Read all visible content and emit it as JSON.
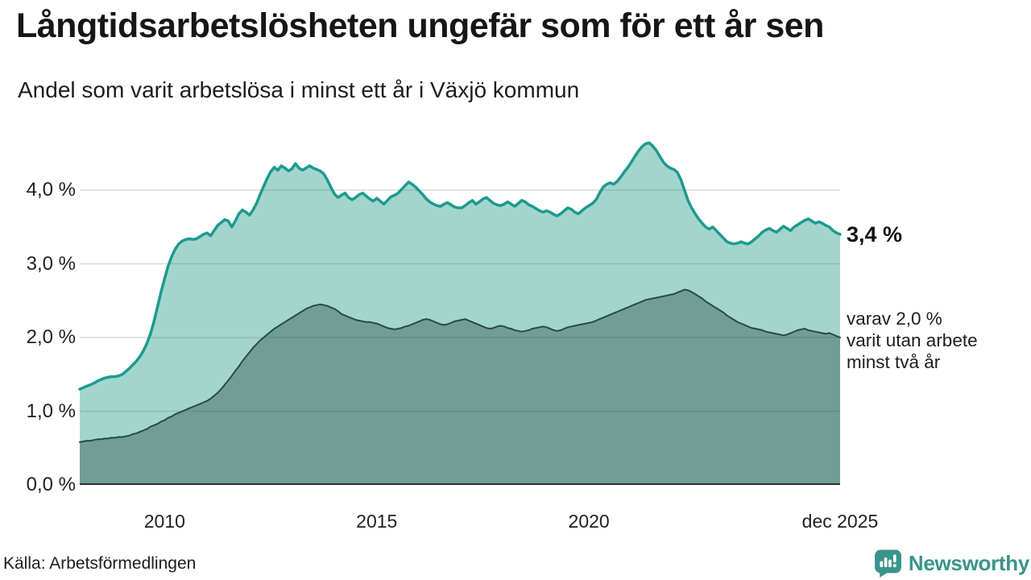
{
  "annotations": {
    "latest_value": "3,4 %",
    "secondary_lines": [
      "varav 2,0 %",
      "varit utan arbete",
      "minst två år"
    ]
  },
  "footer": {
    "source": "Källa: Arbetsförmedlingen",
    "brand": "Newsworthy"
  },
  "icons": {
    "logo": "newsworthy-pin-barchart-icon"
  },
  "colors": {
    "series1_line": "#1d9a8d",
    "series1_fill": "#a2d6cd",
    "series2_line": "#2b4a42",
    "series2_fill": "#719d96",
    "gridline": "#d8dedc",
    "baseline": "#2f2f2f",
    "text": "#1d1d1d",
    "brand_teal": "#39948a"
  },
  "chart_data": {
    "type": "area",
    "title": "Långtidsarbetslösheten ungefär som för ett år sen",
    "subtitle": "Andel som varit arbetslösa i minst ett år i Växjö kommun",
    "xlabel": "",
    "ylabel": "",
    "unit": "%",
    "grid": true,
    "legend_position": "right-edge-annotations",
    "frequency": "monthly",
    "x_range": [
      2008.0,
      2025.92
    ],
    "ylim": [
      0,
      4.7
    ],
    "y_ticks": [
      {
        "label": "0,0 %",
        "value": 0
      },
      {
        "label": "1,0 %",
        "value": 1
      },
      {
        "label": "2,0 %",
        "value": 2
      },
      {
        "label": "3,0 %",
        "value": 3
      },
      {
        "label": "4,0 %",
        "value": 4
      }
    ],
    "x_ticks": [
      {
        "label": "2010",
        "year": 2010
      },
      {
        "label": "2015",
        "year": 2015
      },
      {
        "label": "2020",
        "year": 2020
      },
      {
        "label": "dec 2025",
        "year": 2025.92
      }
    ],
    "series": [
      {
        "name": "Arbetslösa minst ett år",
        "latest_value": 3.4,
        "values": [
          1.3,
          1.32,
          1.34,
          1.36,
          1.38,
          1.41,
          1.43,
          1.45,
          1.46,
          1.47,
          1.47,
          1.48,
          1.5,
          1.54,
          1.58,
          1.63,
          1.68,
          1.74,
          1.82,
          1.92,
          2.05,
          2.22,
          2.42,
          2.62,
          2.8,
          2.97,
          3.1,
          3.2,
          3.27,
          3.31,
          3.33,
          3.34,
          3.33,
          3.34,
          3.37,
          3.4,
          3.42,
          3.38,
          3.45,
          3.52,
          3.56,
          3.6,
          3.58,
          3.5,
          3.58,
          3.68,
          3.73,
          3.7,
          3.66,
          3.73,
          3.82,
          3.94,
          4.05,
          4.16,
          4.25,
          4.31,
          4.27,
          4.33,
          4.3,
          4.26,
          4.29,
          4.36,
          4.3,
          4.27,
          4.3,
          4.33,
          4.3,
          4.28,
          4.26,
          4.22,
          4.14,
          4.04,
          3.95,
          3.9,
          3.93,
          3.96,
          3.9,
          3.87,
          3.9,
          3.94,
          3.96,
          3.92,
          3.88,
          3.85,
          3.89,
          3.85,
          3.81,
          3.86,
          3.91,
          3.93,
          3.96,
          4.01,
          4.06,
          4.11,
          4.08,
          4.04,
          3.99,
          3.94,
          3.88,
          3.84,
          3.81,
          3.79,
          3.78,
          3.81,
          3.83,
          3.8,
          3.77,
          3.76,
          3.76,
          3.79,
          3.83,
          3.86,
          3.81,
          3.84,
          3.88,
          3.9,
          3.86,
          3.82,
          3.8,
          3.79,
          3.81,
          3.84,
          3.81,
          3.78,
          3.82,
          3.86,
          3.84,
          3.8,
          3.78,
          3.75,
          3.72,
          3.7,
          3.72,
          3.7,
          3.67,
          3.65,
          3.68,
          3.72,
          3.76,
          3.74,
          3.7,
          3.68,
          3.72,
          3.76,
          3.79,
          3.82,
          3.87,
          3.96,
          4.04,
          4.08,
          4.1,
          4.08,
          4.12,
          4.18,
          4.25,
          4.31,
          4.38,
          4.46,
          4.53,
          4.59,
          4.63,
          4.64,
          4.6,
          4.54,
          4.46,
          4.38,
          4.33,
          4.3,
          4.28,
          4.24,
          4.14,
          4.0,
          3.86,
          3.76,
          3.68,
          3.61,
          3.55,
          3.5,
          3.47,
          3.5,
          3.45,
          3.4,
          3.35,
          3.3,
          3.28,
          3.27,
          3.28,
          3.3,
          3.28,
          3.27,
          3.3,
          3.34,
          3.38,
          3.43,
          3.46,
          3.48,
          3.45,
          3.43,
          3.47,
          3.51,
          3.48,
          3.45,
          3.5,
          3.53,
          3.56,
          3.59,
          3.61,
          3.58,
          3.55,
          3.57,
          3.55,
          3.52,
          3.5,
          3.45,
          3.42,
          3.4
        ]
      },
      {
        "name": "Varav utan arbete minst två år",
        "latest_value": 2.0,
        "values": [
          0.58,
          0.59,
          0.6,
          0.6,
          0.61,
          0.62,
          0.62,
          0.63,
          0.63,
          0.64,
          0.64,
          0.65,
          0.65,
          0.66,
          0.67,
          0.69,
          0.7,
          0.72,
          0.74,
          0.76,
          0.79,
          0.81,
          0.83,
          0.86,
          0.88,
          0.91,
          0.93,
          0.96,
          0.98,
          1.0,
          1.02,
          1.04,
          1.06,
          1.08,
          1.1,
          1.12,
          1.14,
          1.17,
          1.21,
          1.25,
          1.3,
          1.36,
          1.42,
          1.48,
          1.55,
          1.61,
          1.68,
          1.74,
          1.8,
          1.86,
          1.91,
          1.96,
          2.0,
          2.04,
          2.08,
          2.12,
          2.15,
          2.18,
          2.21,
          2.24,
          2.27,
          2.3,
          2.33,
          2.36,
          2.39,
          2.41,
          2.43,
          2.44,
          2.45,
          2.44,
          2.43,
          2.41,
          2.39,
          2.36,
          2.32,
          2.3,
          2.28,
          2.26,
          2.24,
          2.23,
          2.22,
          2.21,
          2.21,
          2.2,
          2.19,
          2.17,
          2.15,
          2.13,
          2.12,
          2.11,
          2.12,
          2.13,
          2.15,
          2.16,
          2.18,
          2.2,
          2.22,
          2.24,
          2.25,
          2.24,
          2.22,
          2.2,
          2.18,
          2.17,
          2.18,
          2.2,
          2.22,
          2.23,
          2.24,
          2.25,
          2.23,
          2.21,
          2.19,
          2.17,
          2.15,
          2.13,
          2.12,
          2.13,
          2.15,
          2.16,
          2.15,
          2.13,
          2.12,
          2.1,
          2.09,
          2.08,
          2.09,
          2.1,
          2.12,
          2.13,
          2.14,
          2.15,
          2.14,
          2.12,
          2.1,
          2.09,
          2.1,
          2.12,
          2.14,
          2.15,
          2.16,
          2.17,
          2.18,
          2.19,
          2.2,
          2.21,
          2.23,
          2.25,
          2.27,
          2.29,
          2.31,
          2.33,
          2.35,
          2.37,
          2.39,
          2.41,
          2.43,
          2.45,
          2.47,
          2.49,
          2.51,
          2.52,
          2.53,
          2.54,
          2.55,
          2.56,
          2.57,
          2.58,
          2.59,
          2.61,
          2.63,
          2.65,
          2.64,
          2.62,
          2.59,
          2.56,
          2.53,
          2.49,
          2.46,
          2.43,
          2.4,
          2.37,
          2.34,
          2.3,
          2.27,
          2.24,
          2.21,
          2.19,
          2.17,
          2.15,
          2.13,
          2.12,
          2.11,
          2.1,
          2.08,
          2.07,
          2.06,
          2.05,
          2.04,
          2.03,
          2.04,
          2.06,
          2.08,
          2.1,
          2.11,
          2.12,
          2.1,
          2.09,
          2.08,
          2.07,
          2.06,
          2.05,
          2.06,
          2.04,
          2.02,
          2.0
        ]
      }
    ]
  }
}
